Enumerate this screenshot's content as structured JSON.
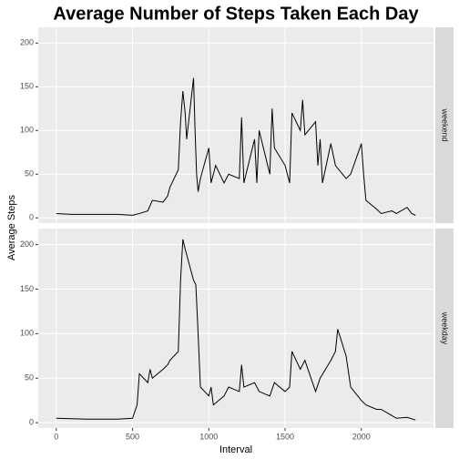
{
  "title": "Average Number of Steps Taken Each Day",
  "x_label": "Interval",
  "y_label": "Average Steps",
  "chart_data": [
    {
      "type": "line",
      "facet": "weekend",
      "color": "#000000",
      "grid": true,
      "x": [
        0,
        100,
        200,
        300,
        400,
        500,
        545,
        600,
        630,
        700,
        730,
        745,
        800,
        815,
        830,
        845,
        855,
        900,
        910,
        920,
        930,
        945,
        1000,
        1015,
        1030,
        1045,
        1100,
        1130,
        1200,
        1215,
        1230,
        1300,
        1315,
        1330,
        1400,
        1415,
        1430,
        1500,
        1530,
        1545,
        1600,
        1615,
        1630,
        1700,
        1715,
        1730,
        1745,
        1800,
        1830,
        1900,
        1930,
        2000,
        2015,
        2030,
        2100,
        2130,
        2200,
        2230,
        2300,
        2330,
        2355
      ],
      "values": [
        5,
        4,
        4,
        4,
        4,
        3,
        5,
        8,
        20,
        18,
        25,
        35,
        55,
        110,
        145,
        120,
        90,
        160,
        100,
        50,
        30,
        45,
        80,
        40,
        50,
        60,
        40,
        50,
        45,
        115,
        40,
        90,
        40,
        100,
        50,
        125,
        80,
        60,
        40,
        120,
        100,
        135,
        95,
        110,
        60,
        90,
        40,
        85,
        60,
        45,
        50,
        85,
        50,
        20,
        10,
        5,
        8,
        5,
        12,
        5,
        3
      ],
      "xlim": [
        -118,
        2473
      ],
      "ylim": [
        -6,
        218
      ],
      "xticks": [
        0,
        500,
        1000,
        1500,
        2000
      ],
      "yticks": [
        0,
        50,
        100,
        150,
        200
      ]
    },
    {
      "type": "line",
      "facet": "weekday",
      "color": "#000000",
      "grid": true,
      "x": [
        0,
        200,
        400,
        500,
        530,
        545,
        600,
        615,
        630,
        700,
        730,
        745,
        800,
        815,
        830,
        845,
        900,
        915,
        930,
        945,
        1000,
        1015,
        1030,
        1100,
        1130,
        1200,
        1215,
        1230,
        1300,
        1330,
        1400,
        1430,
        1500,
        1530,
        1545,
        1600,
        1630,
        1700,
        1730,
        1800,
        1830,
        1845,
        1900,
        1930,
        2000,
        2030,
        2100,
        2130,
        2200,
        2230,
        2300,
        2355
      ],
      "values": [
        5,
        4,
        4,
        5,
        20,
        55,
        45,
        60,
        50,
        60,
        65,
        70,
        80,
        160,
        206,
        195,
        160,
        155,
        100,
        40,
        30,
        40,
        20,
        30,
        40,
        35,
        65,
        40,
        45,
        35,
        30,
        45,
        35,
        40,
        80,
        60,
        70,
        35,
        50,
        70,
        80,
        105,
        75,
        40,
        25,
        20,
        15,
        15,
        8,
        5,
        6,
        3
      ],
      "xlim": [
        -118,
        2473
      ],
      "ylim": [
        -6,
        218
      ],
      "xticks": [
        0,
        500,
        1000,
        1500,
        2000
      ],
      "yticks": [
        0,
        50,
        100,
        150,
        200
      ]
    }
  ]
}
